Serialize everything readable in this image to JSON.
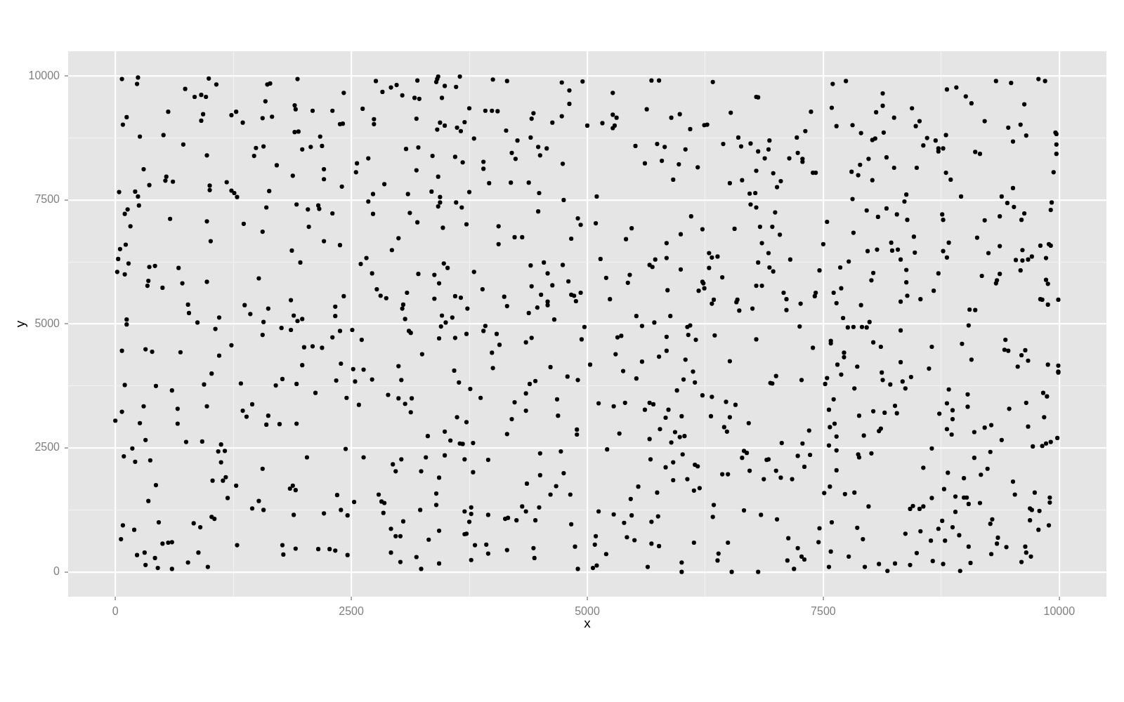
{
  "chart_data": {
    "type": "scatter",
    "xlabel": "x",
    "ylabel": "y",
    "color": "#000000",
    "marker": "circle",
    "grid": true,
    "xlim": [
      -500,
      10500
    ],
    "ylim": [
      -500,
      10500
    ],
    "xticks": [
      0,
      {
        "value": 1250,
        "label": null
      },
      2500,
      {
        "value": 3750,
        "label": null
      },
      5000,
      {
        "value": 6250,
        "label": null
      },
      7500,
      {
        "value": 8750,
        "label": null
      },
      10000
    ],
    "yticks": [
      0,
      {
        "value": 1250,
        "label": null
      },
      2500,
      {
        "value": 3750,
        "label": null
      },
      5000,
      {
        "value": 6250,
        "label": null
      },
      7500,
      {
        "value": 8750,
        "label": null
      },
      10000
    ],
    "x": [
      70,
      240,
      230,
      990,
      1070,
      740,
      840,
      910,
      960,
      1610,
      1640,
      1930,
      1590,
      2420,
      2760,
      2830,
      2920,
      2980,
      3040,
      3170,
      560,
      120,
      80,
      930,
      910,
      1230,
      1280,
      1350,
      1560,
      1660,
      1900,
      1910,
      2090,
      2300,
      2380,
      2410,
      2620,
      2740,
      2740,
      1900,
      1940,
      260,
      510,
      2170,
      720,
      1490,
      1570,
      1980,
      2070,
      2190,
      3080,
      970,
      1470,
      2680,
      2560,
      2550,
      1710,
      300,
      2210,
      1880,
      2210,
      540,
      530,
      610,
      360,
      2400,
      2850,
      40,
      210,
      240,
      1000,
      1000,
      1180,
      1230,
      1260,
      1290,
      1630,
      2730,
      3100,
      2680,
      250,
      130,
      100,
      1600,
      1920,
      2040,
      2150,
      2160,
      2300,
      2730,
      3120,
      580,
      970,
      160,
      1360,
      1560,
      2050,
      3000,
      1010,
      2210,
      2380,
      110,
      50,
      1870,
      2930,
      30,
      140,
      1960,
      2660,
      2600,
      20,
      100,
      360,
      420,
      670,
      2720,
      350,
      340,
      500,
      710,
      970,
      1520,
      2770,
      2810,
      2870,
      3090,
      2420,
      770,
      780,
      1370,
      1430,
      1620,
      1860,
      1890,
      2330,
      2330,
      3050,
      3040,
      3070,
      120,
      870,
      1100,
      1570,
      1930,
      1980,
      3200,
      3190,
      3210,
      3190,
      3200,
      3210,
      3220,
      3420,
      3410,
      3400,
      3490,
      3650,
      3610,
      4000,
      4150,
      4730,
      4950,
      4810,
      4810,
      5270,
      5680,
      5760,
      6330,
      6790,
      6810,
      3460,
      3750,
      3920,
      3990,
      4050,
      4430,
      4410,
      4730,
      4630,
      5000,
      5160,
      5270,
      5310,
      5270,
      5290,
      5630,
      5890,
      5980,
      6090,
      6240,
      6270,
      6520,
      3440,
      3490,
      3410,
      3620,
      3660,
      3700,
      4140,
      3800,
      4260,
      4400,
      5510,
      5740,
      5820,
      6040,
      6440,
      6600,
      6630,
      6730,
      6810,
      3360,
      3600,
      3680,
      3900,
      3900,
      4200,
      4240,
      4480,
      4570,
      4500,
      4740,
      5610,
      5790,
      5970,
      6170,
      6790,
      3420,
      3960,
      4190,
      4380,
      5910,
      6510,
      6640,
      3350,
      3440,
      3750,
      4490,
      4750,
      5100,
      6720,
      6780,
      3440,
      3420,
      3610,
      3670,
      4480,
      6730,
      6790,
      3470,
      3720,
      4060,
      4900,
      4930,
      5090,
      5470,
      6100,
      6220,
      6560,
      6830,
      4230,
      4310,
      4060,
      4830,
      5410,
      5990,
      5840,
      6850,
      5140,
      5840,
      5720,
      5660,
      5690,
      6290,
      6320,
      6380,
      6290,
      5990,
      6810,
      3480,
      3520,
      3800,
      4400,
      4540,
      4740,
      4580,
      5200,
      5450,
      5430,
      6430,
      6220,
      6230,
      6240,
      6180,
      5850,
      6790,
      6850,
      3380,
      3430,
      3380,
      3600,
      3660,
      3890,
      3730,
      4120,
      4150,
      4410,
      4510,
      4580,
      4580,
      4470,
      4380,
      4630,
      4800,
      4830,
      4860,
      4930,
      4880,
      5240,
      4650,
      3460,
      3570,
      3500,
      5520,
      5880,
      5710,
      6580,
      6590,
      6320,
      6340,
      6610,
      6750,
      6880,
      7600,
      7740,
      8130,
      8130,
      8060,
      7590,
      7370,
      7640,
      7810,
      7900,
      7310,
      7220,
      6930,
      6920,
      7140,
      7230,
      7280,
      7280,
      6970,
      7050,
      7010,
      7390,
      7420,
      8020,
      8050,
      8140,
      8250,
      8440,
      8480,
      8520,
      8600,
      8560,
      8690,
      8720,
      8720,
      8770,
      8800,
      8810,
      8910,
      9010,
      9070,
      9330,
      9490,
      9780,
      9850,
      9630,
      9210,
      9460,
      9590,
      9650,
      9510,
      9960,
      9970,
      9970,
      9970,
      9940,
      9110,
      9160,
      8800,
      8850,
      8170,
      8250,
      8490,
      7980,
      7890,
      7800,
      7870,
      8020,
      9510,
      8960,
      9390,
      9450,
      9520,
      9630,
      9600,
      9920,
      9910,
      9370,
      9210,
      8380,
      8360,
      7810,
      7960,
      8170,
      8080,
      8280,
      8390,
      8760,
      8770,
      6990,
      6960,
      7040,
      7540,
      7820,
      7500,
      6920,
      7150,
      6930,
      6970,
      7460,
      7080,
      7110,
      7110,
      7260,
      7410,
      7420,
      8460,
      8220,
      7970,
      8070,
      8230,
      8290,
      8470,
      8320,
      8830,
      8770,
      8810,
      9130,
      9250,
      9370,
      9610,
      9540,
      9610,
      9670,
      9710,
      9800,
      9890,
      9910,
      9860,
      9590,
      9370,
      9340,
      9330,
      9180,
      9860,
      9880,
      9800,
      9820,
      9880,
      9990,
      7770,
      7680,
      8030,
      8010,
      8380,
      8380,
      8390,
      8320,
      8530,
      8670,
      8720,
      7690,
      7610,
      7640,
      7900,
      7710,
      7990,
      9050,
      9110,
      120,
      1060,
      1560,
      1760,
      1860,
      2380,
      2510,
      2300,
      2610,
      3110,
      3130,
      70,
      320,
      390,
      690,
      1100,
      1230,
      2000,
      2090,
      2190,
      1980,
      2390,
      2520,
      2630,
      3000,
      1020,
      100,
      430,
      600,
      940,
      1330,
      1700,
      1770,
      1920,
      2120,
      2340,
      2540,
      2720,
      3030,
      2450,
      2580,
      2890,
      3000,
      3140,
      3070,
      3130,
      300,
      70,
      0,
      260,
      660,
      660,
      970,
      1450,
      1350,
      1390,
      1620,
      1600,
      1740,
      1920,
      320,
      750,
      920,
      1120,
      1090,
      1160,
      1120,
      180,
      90,
      210,
      370,
      2440,
      2030,
      2630,
      1560,
      2940,
      2970,
      3030,
      1030,
      1140,
      1170,
      430,
      1280,
      1850,
      1880,
      1910,
      1190,
      350,
      1520,
      1450,
      1570,
      2350,
      2530,
      2790,
      2820,
      2850,
      2840,
      2390,
      2210,
      2460,
      1890,
      1020,
      1050,
      460,
      80,
      200,
      830,
      900,
      3050,
      2920,
      2970,
      3020,
      60,
      500,
      560,
      600,
      1290,
      1770,
      1780,
      1910,
      2150,
      2270,
      2330,
      2460,
      2920,
      3020,
      230,
      310,
      320,
      420,
      450,
      600,
      770,
      880,
      980,
      3450,
      3920,
      3900,
      4970,
      5580,
      6060,
      6090,
      3430,
      3600,
      3720,
      4040,
      4070,
      4350,
      4410,
      4940,
      5320,
      5360,
      5840,
      6070,
      6150,
      6350,
      6790,
      3250,
      3990,
      4000,
      3590,
      3640,
      3760,
      3870,
      4610,
      4790,
      4900,
      5030,
      5300,
      5380,
      5520,
      5580,
      5760,
      5840,
      6040,
      6120,
      6020,
      6140,
      5950,
      6510,
      4450,
      4390,
      4350,
      4350,
      4230,
      4200,
      4150,
      4680,
      4690,
      4890,
      4890,
      5120,
      5280,
      5400,
      5340,
      5610,
      5660,
      5700,
      5660,
      5860,
      5830,
      5770,
      5930,
      6000,
      5980,
      6030,
      5890,
      6220,
      6320,
      6470,
      6570,
      6310,
      6510,
      6450,
      6480,
      6710,
      3310,
      3490,
      3550,
      3650,
      3680,
      3790,
      3720,
      3620,
      5210,
      3290,
      3490,
      3700,
      3950,
      4500,
      4720,
      3240,
      3430,
      3790,
      4500,
      4750,
      4360,
      4670,
      4610,
      4820,
      3400,
      3400,
      3230,
      3700,
      3770,
      3770,
      3750,
      3950,
      4130,
      4160,
      4250,
      4310,
      4350,
      4490,
      4450,
      4830,
      3430,
      3700,
      3720,
      3320,
      3810,
      3930,
      3950,
      3770,
      4150,
      4430,
      4440,
      4870,
      3430,
      3240,
      3190,
      4900,
      5060,
      5100,
      5120,
      5090,
      5080,
      5200,
      5280,
      5390,
      5460,
      5540,
      5470,
      5420,
      5500,
      5740,
      5680,
      5750,
      5680,
      5760,
      5640,
      6000,
      6000,
      5910,
      5830,
      6010,
      5910,
      6060,
      6140,
      6170,
      6130,
      6190,
      5670,
      6130,
      6340,
      6330,
      6430,
      6490,
      6660,
      6720,
      6640,
      6660,
      6690,
      6840,
      6490,
      6390,
      6380,
      6530,
      6810,
      7250,
      7760,
      7820,
      7910,
      7960,
      8320,
      9040,
      7390,
      7580,
      7580,
      8030,
      8110,
      7720,
      7720,
      7650,
      7860,
      8320,
      8650,
      8970,
      9070,
      9430,
      9420,
      9460,
      9640,
      9600,
      9670,
      9560,
      9880,
      9990,
      9990,
      9990,
      8620,
      7690,
      8120,
      8130,
      8340,
      8370,
      8430,
      8210,
      7000,
      6940,
      6960,
      7270,
      7540,
      7520,
      7830,
      7610,
      7560,
      7620,
      7570,
      7640,
      7560,
      7640,
      7350,
      7280,
      7060,
      7230,
      7360,
      7300,
      6900,
      6920,
      7000,
      6870,
      7050,
      7170,
      7880,
      7930,
      8030,
      8150,
      8090,
      8110,
      8260,
      8280,
      7870,
      7880,
      8010,
      7640,
      7570,
      7510,
      7730,
      7830,
      7980,
      8650,
      8560,
      8820,
      8730,
      8810,
      8830,
      8870,
      8870,
      8810,
      8860,
      9030,
      9030,
      9100,
      9210,
      9280,
      9390,
      9270,
      9100,
      9240,
      9170,
      8990,
      9470,
      9650,
      9670,
      9830,
      9870,
      9840,
      9720,
      9820,
      9860,
      9910,
      9980,
      9510,
      9530,
      9740,
      9900,
      9900,
      9690,
      9710,
      9790,
      9690,
      9780,
      9890,
      9640,
      9650,
      9700,
      9600,
      8900,
      8990,
      9020,
      9040,
      9160,
      8900,
      8780,
      8650,
      8420,
      8450,
      8520,
      8560,
      8760,
      8870,
      8720,
      8530,
      8370,
      8640,
      8790,
      8940,
      9040,
      9290,
      9270,
      9350,
      9340,
      9440,
      9280,
      9060,
      8950,
      8770,
      8660,
      8490,
      8420,
      8260,
      8180,
      8090,
      7940,
      7920,
      7860,
      7770,
      7580,
      7560,
      7590,
      7460,
      7450,
      7130,
      7230,
      7270,
      7300,
      7120,
      7190,
      7010
    ],
    "values": [
      9940,
      9970,
      9840,
      9950,
      9830,
      9740,
      9580,
      9620,
      9580,
      9830,
      9850,
      9940,
      9490,
      9660,
      9900,
      9680,
      9770,
      9820,
      9610,
      9560,
      9280,
      9170,
      9020,
      9230,
      9100,
      9210,
      9280,
      9060,
      9150,
      9180,
      9410,
      9330,
      9300,
      9300,
      9030,
      9040,
      9340,
      9130,
      9030,
      8870,
      8880,
      8780,
      8810,
      8780,
      8620,
      8550,
      8580,
      8520,
      8570,
      8590,
      8530,
      8400,
      8390,
      8340,
      8240,
      8060,
      8200,
      8120,
      8120,
      7990,
      7920,
      7970,
      7890,
      7870,
      7800,
      7770,
      7820,
      7660,
      7670,
      7570,
      7790,
      7700,
      7860,
      7690,
      7640,
      7560,
      7680,
      7620,
      7620,
      7470,
      7390,
      7310,
      7220,
      7350,
      7410,
      7310,
      7390,
      7320,
      7230,
      7220,
      7240,
      7120,
      7070,
      6970,
      7020,
      6860,
      6960,
      6730,
      6670,
      6670,
      6590,
      6600,
      6510,
      6480,
      6490,
      6310,
      6220,
      6240,
      6330,
      6210,
      6050,
      6000,
      6150,
      6170,
      6130,
      6020,
      5870,
      5770,
      5730,
      5820,
      5850,
      5920,
      5700,
      5570,
      5520,
      5630,
      5560,
      5390,
      5220,
      5380,
      5200,
      5310,
      5480,
      5170,
      5350,
      5160,
      5390,
      5310,
      5100,
      5090,
      5030,
      5130,
      5040,
      5060,
      5100,
      9910,
      9140,
      8560,
      8100,
      7050,
      6010,
      9540,
      9990,
      9940,
      9880,
      9800,
      9990,
      9780,
      9930,
      9900,
      9870,
      9890,
      9710,
      9440,
      9660,
      9910,
      9910,
      9880,
      9580,
      9570,
      9560,
      9350,
      9300,
      9300,
      9290,
      9250,
      9140,
      9190,
      9060,
      9000,
      9050,
      9220,
      9160,
      8950,
      9000,
      9330,
      9160,
      9230,
      8930,
      9010,
      9020,
      9260,
      9060,
      9000,
      8920,
      8960,
      8890,
      9070,
      8900,
      8740,
      8700,
      8760,
      8590,
      8630,
      8570,
      8520,
      8630,
      8760,
      8580,
      8640,
      8480,
      8390,
      8370,
      8260,
      8270,
      8130,
      8450,
      8330,
      8570,
      8540,
      8400,
      8230,
      8240,
      8290,
      8220,
      8160,
      8090,
      7970,
      7840,
      7850,
      7850,
      7910,
      7840,
      7900,
      7670,
      7560,
      7660,
      7640,
      7500,
      7570,
      7630,
      7640,
      7450,
      7370,
      7450,
      7350,
      7270,
      7410,
      7350,
      6940,
      7010,
      6970,
      7130,
      7000,
      7030,
      6930,
      7170,
      6910,
      6920,
      6960,
      6750,
      6750,
      6610,
      6720,
      6710,
      6810,
      6630,
      6630,
      6310,
      6330,
      6300,
      6190,
      6150,
      6430,
      6340,
      6360,
      6130,
      6100,
      6240,
      6220,
      6130,
      6050,
      6180,
      6240,
      6190,
      6020,
      5930,
      5990,
      5830,
      5940,
      5850,
      5820,
      5720,
      5670,
      5680,
      5770,
      5770,
      5990,
      5820,
      5510,
      5560,
      5530,
      5700,
      5310,
      5550,
      5360,
      5760,
      5590,
      5450,
      5380,
      5330,
      5220,
      5780,
      5860,
      5590,
      5570,
      5630,
      5460,
      5500,
      5090,
      5170,
      5130,
      5030,
      5160,
      5160,
      5030,
      5440,
      5490,
      5410,
      5490,
      5270,
      5310,
      8340,
      9840,
      9900,
      9650,
      9400,
      9270,
      9360,
      9280,
      8990,
      9010,
      8850,
      8890,
      8760,
      8700,
      8520,
      8340,
      8450,
      8330,
      8270,
      8040,
      7880,
      7760,
      8050,
      8050,
      8710,
      8740,
      8860,
      9160,
      9350,
      8990,
      9090,
      8750,
      8600,
      8700,
      8540,
      8480,
      8540,
      8810,
      9730,
      9770,
      9590,
      9450,
      9900,
      9860,
      9940,
      9900,
      9430,
      9090,
      8960,
      9020,
      8800,
      8680,
      8860,
      8830,
      8620,
      8430,
      8060,
      8470,
      8430,
      8050,
      7910,
      8360,
      8150,
      8150,
      8330,
      8210,
      8070,
      8000,
      7900,
      7740,
      7570,
      7570,
      7440,
      7360,
      7230,
      7100,
      7450,
      7300,
      7170,
      7090,
      7610,
      7470,
      7520,
      7290,
      7330,
      7160,
      7210,
      7100,
      7210,
      7100,
      7250,
      6960,
      6800,
      7060,
      6840,
      6610,
      6430,
      6300,
      6140,
      6060,
      6080,
      5630,
      5500,
      5280,
      5410,
      5560,
      5630,
      6760,
      6640,
      6470,
      6500,
      6480,
      6500,
      6440,
      6300,
      6640,
      6470,
      6340,
      6740,
      6430,
      6570,
      6490,
      6290,
      6280,
      6300,
      6360,
      6580,
      6610,
      6580,
      6330,
      6080,
      6010,
      5880,
      5820,
      5970,
      5890,
      5810,
      5500,
      5490,
      5390,
      5490,
      6260,
      6140,
      6030,
      5880,
      6090,
      5840,
      5570,
      5450,
      5500,
      5670,
      6020,
      5720,
      5630,
      5420,
      5380,
      5120,
      5040,
      5290,
      5280,
      4990,
      4900,
      4780,
      4920,
      4880,
      4860,
      4880,
      4730,
      4680,
      4860,
      4820,
      4460,
      4490,
      4440,
      4430,
      4360,
      4570,
      4530,
      4550,
      4520,
      4170,
      4200,
      4090,
      4080,
      4150,
      4000,
      3770,
      3750,
      3660,
      3780,
      3800,
      3760,
      3890,
      3790,
      3610,
      3860,
      3840,
      3880,
      3870,
      3510,
      3370,
      3570,
      3500,
      3500,
      3390,
      3220,
      3340,
      3230,
      3050,
      3000,
      3290,
      2990,
      3340,
      3380,
      3250,
      3130,
      3150,
      2970,
      2980,
      2990,
      2660,
      2620,
      2630,
      2570,
      2430,
      2440,
      2210,
      2490,
      2330,
      2220,
      2250,
      2480,
      2310,
      2310,
      2080,
      2170,
      2030,
      2270,
      1840,
      1840,
      1910,
      1750,
      1740,
      1680,
      1740,
      1650,
      1490,
      1430,
      1430,
      1280,
      1250,
      1550,
      1410,
      1560,
      1420,
      1390,
      1190,
      1250,
      1180,
      1140,
      1150,
      1110,
      1070,
      1000,
      940,
      850,
      980,
      900,
      1020,
      870,
      720,
      720,
      660,
      570,
      590,
      600,
      540,
      540,
      350,
      470,
      460,
      460,
      430,
      340,
      390,
      200,
      340,
      390,
      140,
      280,
      80,
      60,
      190,
      390,
      100,
      4950,
      4960,
      4860,
      4940,
      4960,
      4940,
      4970,
      4710,
      4720,
      4800,
      4800,
      4580,
      4630,
      4720,
      4690,
      4730,
      4760,
      4740,
      4780,
      4680,
      4770,
      4690,
      4390,
      4420,
      4110,
      4060,
      3820,
      3690,
      3510,
      4130,
      3940,
      3870,
      4180,
      4390,
      4050,
      3900,
      4240,
      4340,
      4460,
      4280,
      4040,
      3880,
      3820,
      3660,
      4250,
      3850,
      3790,
      3600,
      3250,
      3420,
      3080,
      2780,
      3480,
      3150,
      2870,
      2770,
      3400,
      3340,
      3410,
      2790,
      3270,
      3410,
      3380,
      2680,
      3270,
      3110,
      2880,
      2820,
      3140,
      2720,
      2740,
      2610,
      3560,
      3530,
      3430,
      3370,
      3140,
      3120,
      2920,
      2830,
      3000,
      2740,
      2830,
      2650,
      2590,
      2580,
      2600,
      3020,
      3120,
      2470,
      2310,
      2350,
      2270,
      2260,
      2390,
      2430,
      2030,
      1900,
      2010,
      1950,
      1990,
      1780,
      1730,
      1560,
      1560,
      1580,
      1350,
      1250,
      1220,
      1300,
      1170,
      1010,
      1150,
      1070,
      1090,
      1040,
      1320,
      1220,
      1300,
      1040,
      960,
      830,
      760,
      770,
      650,
      540,
      550,
      370,
      240,
      440,
      480,
      280,
      510,
      170,
      60,
      300,
      60,
      80,
      130,
      1220,
      720,
      550,
      360,
      1160,
      990,
      1470,
      1720,
      1140,
      700,
      640,
      1600,
      1010,
      1120,
      570,
      520,
      100,
      190,
      0,
      2210,
      2110,
      2370,
      1850,
      1870,
      2160,
      2130,
      1640,
      1690,
      2270,
      590,
      1350,
      1110,
      1970,
      1970,
      1240,
      2040,
      2300,
      2440,
      2400,
      1150,
      590,
      370,
      230,
      0,
      0,
      4950,
      4930,
      4940,
      4940,
      4930,
      4870,
      4970,
      4520,
      4660,
      4610,
      4630,
      4540,
      4420,
      4330,
      4180,
      4140,
      4230,
      4540,
      4600,
      4280,
      4680,
      4480,
      4460,
      4470,
      4370,
      4260,
      4140,
      4180,
      4160,
      4040,
      4020,
      4100,
      3980,
      4020,
      3870,
      3840,
      3700,
      3930,
      3780,
      3950,
      3810,
      3800,
      3870,
      3910,
      3790,
      3700,
      3480,
      3270,
      2990,
      2920,
      2730,
      2550,
      2450,
      2850,
      2590,
      2600,
      2340,
      2360,
      2120,
      2260,
      2270,
      2040,
      1870,
      1900,
      1870,
      3150,
      2750,
      3240,
      3210,
      2840,
      2890,
      3350,
      3200,
      2370,
      2310,
      2390,
      2050,
      1720,
      1590,
      1570,
      1600,
      1320,
      2490,
      2100,
      2000,
      3190,
      3400,
      3680,
      3260,
      3080,
      2880,
      2770,
      3580,
      3330,
      2820,
      2910,
      2960,
      2660,
      2420,
      2300,
      2080,
      1960,
      1890,
      3290,
      3410,
      2930,
      3610,
      3540,
      3120,
      2530,
      2540,
      2590,
      2620,
      2700,
      1820,
      1560,
      1600,
      1500,
      1400,
      1280,
      1250,
      1230,
      1040,
      850,
      940,
      510,
      390,
      310,
      200,
      1520,
      1500,
      1500,
      1370,
      1390,
      1210,
      1670,
      1490,
      1270,
      1330,
      1270,
      1320,
      1030,
      900,
      870,
      820,
      770,
      630,
      630,
      740,
      510,
      1060,
      970,
      690,
      570,
      500,
      360,
      180,
      20,
      160,
      220,
      380,
      140,
      170,
      20,
      160,
      100,
      660,
      890,
      310,
      410,
      100,
      1000,
      880,
      600,
      680,
      480,
      310,
      250,
      230,
      60,
      1060
    ]
  }
}
